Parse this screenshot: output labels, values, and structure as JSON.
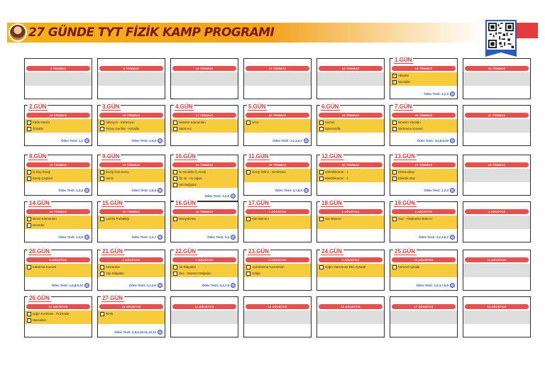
{
  "header": {
    "title": "27 GÜNDE TYT FİZİK KAMP PROGRAMI",
    "accent": "#f3b318",
    "title_color": "#7a1919"
  },
  "rows": [
    [
      {
        "gun": "",
        "date": "8 TEMMUZ",
        "topics": [],
        "odev": ""
      },
      {
        "gun": "",
        "date": "9 TEMMUZ",
        "topics": [],
        "odev": ""
      },
      {
        "gun": "",
        "date": "10 TEMMUZ",
        "topics": [],
        "odev": ""
      },
      {
        "gun": "",
        "date": "11 TEMMUZ",
        "topics": [],
        "odev": ""
      },
      {
        "gun": "",
        "date": "12 TEMMUZ",
        "topics": [],
        "odev": ""
      },
      {
        "gun": "1.GÜN",
        "date": "13 TEMMUZ",
        "topics": [
          "Aktarlar",
          "Nicelikler"
        ],
        "checked": [
          true,
          true
        ],
        "odev": "Ödev Testi: 1,2,3"
      },
      {
        "gun": "",
        "date": "14 TEMMUZ",
        "topics": [],
        "odev": ""
      }
    ],
    [
      {
        "gun": "2.GÜN",
        "date": "15 TEMMUZ",
        "topics": [
          "Kütle-Hacim",
          "Özkütle"
        ],
        "odev": "Ödev Testi: 1,2"
      },
      {
        "gun": "3.GÜN",
        "date": "16 TEMMUZ",
        "topics": [
          "Adezyon - Kohezyon",
          "Yüzey Gerilimi - Kılcallık"
        ],
        "odev": "Ödev Testi: 2,4,5"
      },
      {
        "gun": "4.GÜN",
        "date": "17 TEMMUZ",
        "topics": [
          "Hareket Kavramları",
          "Sabit Hız"
        ],
        "odev": ""
      },
      {
        "gun": "5.GÜN",
        "date": "18 TEMMUZ",
        "topics": [
          "İvme"
        ],
        "odev": "Ödev Testi: 1,2,3,4,7"
      },
      {
        "gun": "6.GÜN",
        "date": "19 TEMMUZ",
        "topics": [
          "Kuvvet",
          "Eylemsizlik"
        ],
        "odev": ""
      },
      {
        "gun": "7.GÜN",
        "date": "20 TEMMUZ",
        "topics": [
          "Newton Yasaları",
          "Sürtünme Kuvveti"
        ],
        "odev": "Ödev Testi: 3,4,8,9,10"
      },
      {
        "gun": "",
        "date": "21 TEMMUZ",
        "topics": [],
        "odev": ""
      }
    ],
    [
      {
        "gun": "8.GÜN",
        "date": "22 TEMMUZ",
        "topics": [
          "İş Güç Enerji",
          "Enerji Çeşitleri"
        ],
        "odev": "Ödev Testi: 1,3,4"
      },
      {
        "gun": "9.GÜN",
        "date": "23 TEMMUZ",
        "topics": [
          "Enerji Korunumu",
          "Verim"
        ],
        "odev": "Ödev Testi: 2,5,6"
      },
      {
        "gun": "10.GÜN",
        "date": "24 TEMMUZ",
        "topics": [
          "Isı-Sıcaklık-İç enerji",
          "Öz ısı - Isı sığası",
          "Hal Değişimi"
        ],
        "odev": "Ödev Testi: 1,2,9"
      },
      {
        "gun": "11.GÜN",
        "date": "25 TEMMUZ",
        "topics": [
          "Enerji İletimi - Genleşme"
        ],
        "odev": "Ödev Testi: 3,7,8,9"
      },
      {
        "gun": "12.GÜN",
        "date": "26 TEMMUZ",
        "topics": [
          "Elektriklenme - 1",
          "Elektriklenme - 2"
        ],
        "odev": ""
      },
      {
        "gun": "13.GÜN",
        "date": "27 TEMMUZ",
        "topics": [
          "Elektroskop",
          "Elektrik Alan"
        ],
        "odev": "Ödev Testi: 1,2,3"
      },
      {
        "gun": "",
        "date": "28 TEMMUZ",
        "topics": [],
        "odev": ""
      }
    ],
    [
      {
        "gun": "14.GÜN",
        "date": "29 TEMMUZ",
        "topics": [
          "Devre Elemanları",
          "Devreler"
        ],
        "odev": "Ödev Testi: 1,4,5"
      },
      {
        "gun": "15.GÜN",
        "date": "30 TEMMUZ",
        "topics": [
          "Lamba Parlaklığı"
        ],
        "odev": "Ödev Testi: 2,4,7"
      },
      {
        "gun": "16.GÜN",
        "date": "31 TEMMUZ",
        "topics": [
          "Manyetizma"
        ],
        "odev": "Ödev Testi: 3,4"
      },
      {
        "gun": "17.GÜN",
        "date": "1 AĞUSTOS",
        "topics": [
          "Katı Basıncı"
        ],
        "odev": ""
      },
      {
        "gun": "18.GÜN",
        "date": "2 AĞUSTOS",
        "topics": [
          "Sıvı Basıncı"
        ],
        "odev": ""
      },
      {
        "gun": "19.GÜN",
        "date": "3 AĞUSTOS",
        "topics": [
          "Gaz - Akışkanlar Basıncı"
        ],
        "odev": "Ödev Testi: 1,2,3,6,7"
      },
      {
        "gun": "",
        "date": "4 AĞUSTOS",
        "topics": [],
        "odev": ""
      }
    ],
    [
      {
        "gun": "20.GÜN",
        "date": "5 AĞUSTOS",
        "topics": [
          "Kaldırma Kuvveti"
        ],
        "odev": "Ödev Testi: 3,4,8,9,10"
      },
      {
        "gun": "21.GÜN",
        "date": "6 AĞUSTOS",
        "topics": [
          "Kavramlar",
          "Yay Dalgaları"
        ],
        "odev": "Ödev Testi: 1,2,3,5"
      },
      {
        "gun": "22.GÜN",
        "date": "7 AĞUSTOS",
        "topics": [
          "Su Dalgaları",
          "Ses - Deprem Dalgaları"
        ],
        "odev": "Ödev Testi: 3,4,7,8"
      },
      {
        "gun": "23.GÜN",
        "date": "8 AĞUSTOS",
        "topics": [
          "Aydınlanma Kavramları",
          "Gölge"
        ],
        "odev": ""
      },
      {
        "gun": "24.GÜN",
        "date": "9 AĞUSTOS",
        "topics": [
          "Işığın Yansıması-Düz Aynalar"
        ],
        "odev": ""
      },
      {
        "gun": "25.GÜN",
        "date": "10 AĞUSTOS",
        "topics": [
          "Küresel Aynalar"
        ],
        "odev": "Ödev Testi: 1,2,3,7,8,9"
      },
      {
        "gun": "",
        "date": "11 AĞUSTOS",
        "topics": [],
        "odev": ""
      }
    ],
    [
      {
        "gun": "26.GÜN",
        "date": "12 AĞUSTOS",
        "topics": [
          "Işığın Kırılması - Prizmalar",
          "Mercekler"
        ],
        "odev": ""
      },
      {
        "gun": "27.GÜN",
        "date": "13 AĞUSTOS",
        "topics": [
          "Renk"
        ],
        "odev": "Ödev Testi: 4,5,6,10,11,12,13"
      },
      {
        "gun": "",
        "date": "14 AĞUSTOS",
        "topics": [],
        "odev": ""
      },
      {
        "gun": "",
        "date": "15 AĞUSTOS",
        "topics": [],
        "odev": ""
      },
      {
        "gun": "",
        "date": "16 AĞUSTOS",
        "topics": [],
        "odev": ""
      },
      {
        "gun": "",
        "date": "17 AĞUSTOS",
        "topics": [],
        "odev": ""
      },
      {
        "gun": "",
        "date": "18 AĞUSTOS",
        "topics": [],
        "odev": ""
      }
    ]
  ]
}
